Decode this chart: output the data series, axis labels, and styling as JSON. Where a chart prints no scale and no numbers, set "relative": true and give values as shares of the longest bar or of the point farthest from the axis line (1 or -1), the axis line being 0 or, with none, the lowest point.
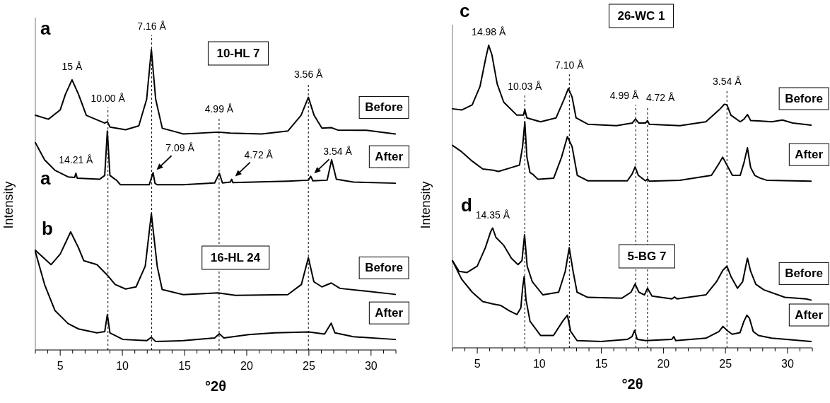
{
  "chart_data": [
    {
      "type": "line",
      "relative": true,
      "xlabel": "°2θ",
      "ylabel": "Intensity",
      "xlim": [
        3,
        32
      ],
      "xticks": [
        {
          "value": 3,
          "label": null
        },
        {
          "value": 4,
          "label": null
        },
        5,
        {
          "value": 6,
          "label": null
        },
        {
          "value": 7,
          "label": null
        },
        {
          "value": 8,
          "label": null
        },
        {
          "value": 9,
          "label": null
        },
        10,
        {
          "value": 11,
          "label": null
        },
        {
          "value": 12,
          "label": null
        },
        {
          "value": 13,
          "label": null
        },
        {
          "value": 14,
          "label": null
        },
        15,
        {
          "value": 16,
          "label": null
        },
        {
          "value": 17,
          "label": null
        },
        {
          "value": 18,
          "label": null
        },
        {
          "value": 19,
          "label": null
        },
        20,
        {
          "value": 21,
          "label": null
        },
        {
          "value": 22,
          "label": null
        },
        {
          "value": 23,
          "label": null
        },
        {
          "value": 24,
          "label": null
        },
        25,
        {
          "value": 26,
          "label": null
        },
        {
          "value": 27,
          "label": null
        },
        {
          "value": 28,
          "label": null
        },
        {
          "value": 29,
          "label": null
        },
        30,
        {
          "value": 31,
          "label": null
        },
        {
          "value": 32,
          "label": null
        }
      ],
      "series": [
        {
          "name": "Before",
          "color": "#000000",
          "x": [
            3,
            4.05,
            5,
            5.42,
            5.95,
            6.47,
            7.1,
            8.58,
            8.79,
            9.0,
            10.26,
            11.32,
            11.95,
            12.33,
            12.68,
            13.21,
            14.9,
            17.74,
            18.68,
            21.21,
            23.32,
            24.37,
            24.96,
            25.42,
            26.05,
            26.79,
            27.32,
            29.63,
            31.95
          ],
          "values": [
            0.781,
            0.768,
            0.799,
            0.851,
            0.899,
            0.851,
            0.781,
            0.755,
            0.76,
            0.742,
            0.733,
            0.746,
            0.834,
            1,
            0.834,
            0.738,
            0.719,
            0.725,
            0.722,
            0.719,
            0.729,
            0.781,
            0.841,
            0.781,
            0.738,
            0.74,
            0.732,
            0.731,
            0.719
          ]
        },
        {
          "name": "After",
          "color": "#000000",
          "x": [
            3,
            3.74,
            4.58,
            5.63,
            6.16,
            6.26,
            6.37,
            8.16,
            8.58,
            8.79,
            9.0,
            9.42,
            9.53,
            9.84,
            12.16,
            12.47,
            12.62,
            12.79,
            14.89,
            17.42,
            17.8,
            18.05,
            18.68,
            18.79,
            18.89,
            23.32,
            24.96,
            25.15,
            25.32,
            26.47,
            26.83,
            27.21,
            28.58,
            31.95
          ],
          "values": [
            0.69,
            0.633,
            0.598,
            0.576,
            0.574,
            0.588,
            0.572,
            0.568,
            0.581,
            0.729,
            0.581,
            0.568,
            0.565,
            0.55,
            0.55,
            0.59,
            0.555,
            0.55,
            0.55,
            0.556,
            0.588,
            0.556,
            0.559,
            0.568,
            0.557,
            0.562,
            0.565,
            0.578,
            0.563,
            0.565,
            0.633,
            0.568,
            0.559,
            0.555
          ]
        },
        {
          "name": "Before",
          "color": "#000000",
          "x": [
            3,
            4.26,
            5,
            5.84,
            6.47,
            6.9,
            7.95,
            8.79,
            9.42,
            10.26,
            11.1,
            11.84,
            12.33,
            12.8,
            13.2,
            14.9,
            17.7,
            19.1,
            23.3,
            24.4,
            24.96,
            25.4,
            26.05,
            26.8,
            27.5,
            29.6,
            31.95
          ],
          "values": [
            0.332,
            0.284,
            0.319,
            0.393,
            0.34,
            0.297,
            0.284,
            0.249,
            0.218,
            0.203,
            0.21,
            0.279,
            0.454,
            0.279,
            0.201,
            0.184,
            0.19,
            0.182,
            0.184,
            0.218,
            0.307,
            0.227,
            0.21,
            0.223,
            0.205,
            0.196,
            0.185
          ]
        },
        {
          "name": "After",
          "color": "#000000",
          "x": [
            3,
            3.74,
            4.58,
            5.63,
            6.47,
            7.95,
            8.58,
            8.79,
            9.0,
            10.05,
            11.95,
            12.33,
            12.68,
            14.9,
            17.42,
            17.8,
            18.16,
            20.16,
            22.26,
            25.0,
            26.26,
            26.79,
            27.1,
            28.58,
            31.95
          ],
          "values": [
            0.327,
            0.218,
            0.131,
            0.088,
            0.07,
            0.057,
            0.061,
            0.118,
            0.057,
            0.035,
            0.031,
            0.042,
            0.028,
            0.031,
            0.04,
            0.054,
            0.04,
            0.051,
            0.057,
            0.06,
            0.053,
            0.089,
            0.057,
            0.044,
            0.035
          ]
        }
      ],
      "ref_lines": [
        {
          "axis": "x",
          "value": 8.84,
          "label": "10.00 Å",
          "line_style": "dashed"
        },
        {
          "axis": "x",
          "value": 12.36,
          "label": "7.16 Å",
          "line_style": "dashed"
        },
        {
          "axis": "x",
          "value": 17.78,
          "label": "4.99 Å",
          "line_style": "dashed"
        },
        {
          "axis": "x",
          "value": 24.96,
          "label": "3.56 Å",
          "line_style": "dashed"
        }
      ],
      "annotations": [
        "a",
        "10-HL 7",
        "a",
        "b",
        "16-HL 24",
        {
          "text": "15 Å",
          "x": 5.95,
          "y": 0.899
        },
        {
          "text": "14.21 Å",
          "x": 6.26,
          "y": 0.588
        },
        {
          "text": "7.09 Å",
          "x": 12.47,
          "y": 0.59
        },
        {
          "text": "4.72 Å",
          "x": 18.79,
          "y": 0.568
        },
        {
          "text": "3.54 Å",
          "x": 25.15,
          "y": 0.578
        }
      ]
    },
    {
      "type": "line",
      "relative": true,
      "xlabel": "°2θ",
      "ylabel": "Intensity",
      "xlim": [
        3,
        32
      ],
      "xticks": [
        {
          "value": 3,
          "label": null
        },
        {
          "value": 4,
          "label": null
        },
        5,
        {
          "value": 6,
          "label": null
        },
        {
          "value": 7,
          "label": null
        },
        {
          "value": 8,
          "label": null
        },
        {
          "value": 9,
          "label": null
        },
        10,
        {
          "value": 11,
          "label": null
        },
        {
          "value": 12,
          "label": null
        },
        {
          "value": 13,
          "label": null
        },
        {
          "value": 14,
          "label": null
        },
        15,
        {
          "value": 16,
          "label": null
        },
        {
          "value": 17,
          "label": null
        },
        {
          "value": 18,
          "label": null
        },
        {
          "value": 19,
          "label": null
        },
        20,
        {
          "value": 21,
          "label": null
        },
        {
          "value": 22,
          "label": null
        },
        {
          "value": 23,
          "label": null
        },
        {
          "value": 24,
          "label": null
        },
        25,
        {
          "value": 26,
          "label": null
        },
        {
          "value": 27,
          "label": null
        },
        {
          "value": 28,
          "label": null
        },
        {
          "value": 29,
          "label": null
        },
        30,
        {
          "value": 31,
          "label": null
        },
        {
          "value": 32,
          "label": null
        }
      ],
      "series": [
        {
          "name": "Before",
          "color": "#000000",
          "x": [
            3,
            3.74,
            4.59,
            5.22,
            5.69,
            5.92,
            6.18,
            6.6,
            7.13,
            8.19,
            8.72,
            8.83,
            9.0,
            10.1,
            11.35,
            11.99,
            12.34,
            12.64,
            12.96,
            13.91,
            16.22,
            17.49,
            17.75,
            18.02,
            18.55,
            18.72,
            18.86,
            21.33,
            23.42,
            24.48,
            24.91,
            25.12,
            25.44,
            26.19,
            26.5,
            26.77,
            27.03,
            27.66,
            28.74,
            29.59,
            30.42,
            31.9
          ],
          "values": [
            0.79,
            0.786,
            0.803,
            0.864,
            0.959,
            1,
            0.968,
            0.873,
            0.812,
            0.769,
            0.769,
            0.788,
            0.76,
            0.747,
            0.76,
            0.821,
            0.857,
            0.829,
            0.76,
            0.739,
            0.734,
            0.743,
            0.756,
            0.743,
            0.743,
            0.751,
            0.739,
            0.734,
            0.747,
            0.786,
            0.805,
            0.803,
            0.769,
            0.747,
            0.756,
            0.771,
            0.751,
            0.75,
            0.747,
            0.753,
            0.743,
            0.736
          ]
        },
        {
          "name": "After",
          "color": "#000000",
          "x": [
            3,
            3.74,
            4.59,
            5.44,
            6.28,
            6.71,
            7.77,
            8.4,
            8.65,
            8.83,
            9.0,
            9.25,
            9.46,
            9.89,
            11.16,
            11.79,
            12.26,
            12.64,
            13.06,
            13.91,
            17.09,
            17.47,
            17.72,
            17.98,
            18.55,
            18.72,
            18.86,
            21.33,
            23.87,
            24.4,
            24.78,
            25.12,
            25.56,
            26.19,
            26.5,
            26.77,
            27.03,
            27.36,
            27.79,
            28.32,
            31.9
          ],
          "values": [
            0.669,
            0.648,
            0.617,
            0.591,
            0.587,
            0.583,
            0.596,
            0.604,
            0.665,
            0.747,
            0.63,
            0.579,
            0.574,
            0.557,
            0.561,
            0.63,
            0.698,
            0.665,
            0.57,
            0.552,
            0.552,
            0.574,
            0.598,
            0.57,
            0.552,
            0.558,
            0.551,
            0.554,
            0.57,
            0.604,
            0.63,
            0.604,
            0.57,
            0.57,
            0.613,
            0.661,
            0.596,
            0.57,
            0.561,
            0.554,
            0.551
          ]
        },
        {
          "name": "Before",
          "color": "#000000",
          "x": [
            3,
            3.53,
            4.17,
            5.0,
            5.65,
            6.07,
            6.24,
            6.5,
            7.13,
            7.75,
            8.28,
            8.6,
            8.81,
            9.02,
            9.44,
            10.29,
            11.56,
            12.09,
            12.41,
            12.72,
            13.04,
            13.89,
            16.64,
            17.39,
            17.72,
            18.02,
            18.47,
            18.72,
            19.08,
            20.69,
            20.9,
            21.09,
            23.42,
            24.27,
            24.8,
            25.12,
            25.44,
            25.97,
            26.38,
            26.77,
            27.03,
            27.45,
            28.09,
            29.78,
            31.48,
            31.9
          ],
          "values": [
            0.288,
            0.253,
            0.249,
            0.27,
            0.331,
            0.383,
            0.396,
            0.365,
            0.339,
            0.296,
            0.275,
            0.288,
            0.374,
            0.27,
            0.218,
            0.175,
            0.184,
            0.253,
            0.331,
            0.253,
            0.184,
            0.167,
            0.164,
            0.184,
            0.211,
            0.184,
            0.175,
            0.197,
            0.171,
            0.162,
            0.168,
            0.162,
            0.175,
            0.218,
            0.257,
            0.27,
            0.236,
            0.197,
            0.218,
            0.296,
            0.253,
            0.21,
            0.192,
            0.167,
            0.162,
            0.158
          ]
        },
        {
          "name": "After",
          "color": "#000000",
          "x": [
            3,
            3.74,
            4.59,
            5.44,
            6.28,
            6.9,
            7.56,
            8.19,
            8.51,
            8.66,
            8.78,
            8.93,
            9.25,
            10.1,
            11.14,
            11.88,
            12.26,
            12.53,
            13.04,
            14.97,
            17.09,
            17.47,
            17.68,
            17.89,
            18.57,
            20.67,
            20.84,
            20.99,
            23.42,
            24.48,
            24.8,
            25.12,
            25.54,
            26.17,
            26.49,
            26.73,
            26.94,
            27.24,
            27.66,
            28.72,
            31.9
          ],
          "values": [
            0.288,
            0.227,
            0.184,
            0.153,
            0.145,
            0.14,
            0.123,
            0.11,
            0.132,
            0.201,
            0.236,
            0.158,
            0.088,
            0.041,
            0.041,
            0.088,
            0.108,
            0.054,
            0.024,
            0.021,
            0.028,
            0.037,
            0.058,
            0.028,
            0.024,
            0.028,
            0.037,
            0.024,
            0.032,
            0.054,
            0.071,
            0.058,
            0.045,
            0.05,
            0.088,
            0.108,
            0.097,
            0.054,
            0.041,
            0.032,
            0.021
          ]
        }
      ],
      "ref_lines": [
        {
          "axis": "x",
          "value": 8.83,
          "label": "10.03 Å",
          "line_style": "dashed"
        },
        {
          "axis": "x",
          "value": 12.42,
          "label": "7.10 Å",
          "line_style": "dashed"
        },
        {
          "axis": "x",
          "value": 17.77,
          "label": "4.99 Å",
          "line_style": "dashed"
        },
        {
          "axis": "x",
          "value": 18.72,
          "label": "4.72 Å",
          "line_style": "dashed"
        },
        {
          "axis": "x",
          "value": 25.12,
          "label": "3.54 Å",
          "line_style": "dashed"
        }
      ],
      "annotations": [
        "c",
        "26-WC 1",
        "d",
        "5-BG 7",
        {
          "text": "14.98 Å",
          "x": 5.92,
          "y": 1
        },
        {
          "text": "14.35 Å",
          "x": 6.24,
          "y": 0.396
        }
      ]
    }
  ]
}
